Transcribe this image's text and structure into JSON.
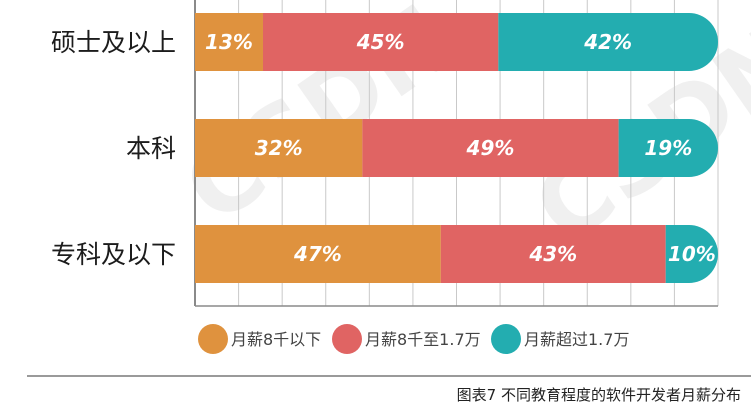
{
  "chart_data": {
    "type": "bar",
    "orientation": "horizontal",
    "stacked": true,
    "normalized_percent": true,
    "categories": [
      "硕士及以上",
      "本科",
      "专科及以下"
    ],
    "series": [
      {
        "name": "月薪8千以下",
        "color": "#DF923E",
        "values": [
          13,
          32,
          47
        ],
        "labels": [
          "13%",
          "32%",
          "47%"
        ]
      },
      {
        "name": "月薪8千至1.7万",
        "color": "#E06463",
        "values": [
          45,
          49,
          43
        ],
        "labels": [
          "45%",
          "49%",
          "43%"
        ]
      },
      {
        "name": "月薪超过1.7万",
        "color": "#23ADB0",
        "values": [
          42,
          19,
          10
        ],
        "labels": [
          "42%",
          "19%",
          "10%"
        ]
      }
    ],
    "xlim": [
      0,
      100
    ],
    "grid": true,
    "legend_position": "bottom",
    "caption": "图表7 不同教育程度的软件开发者月薪分布"
  }
}
